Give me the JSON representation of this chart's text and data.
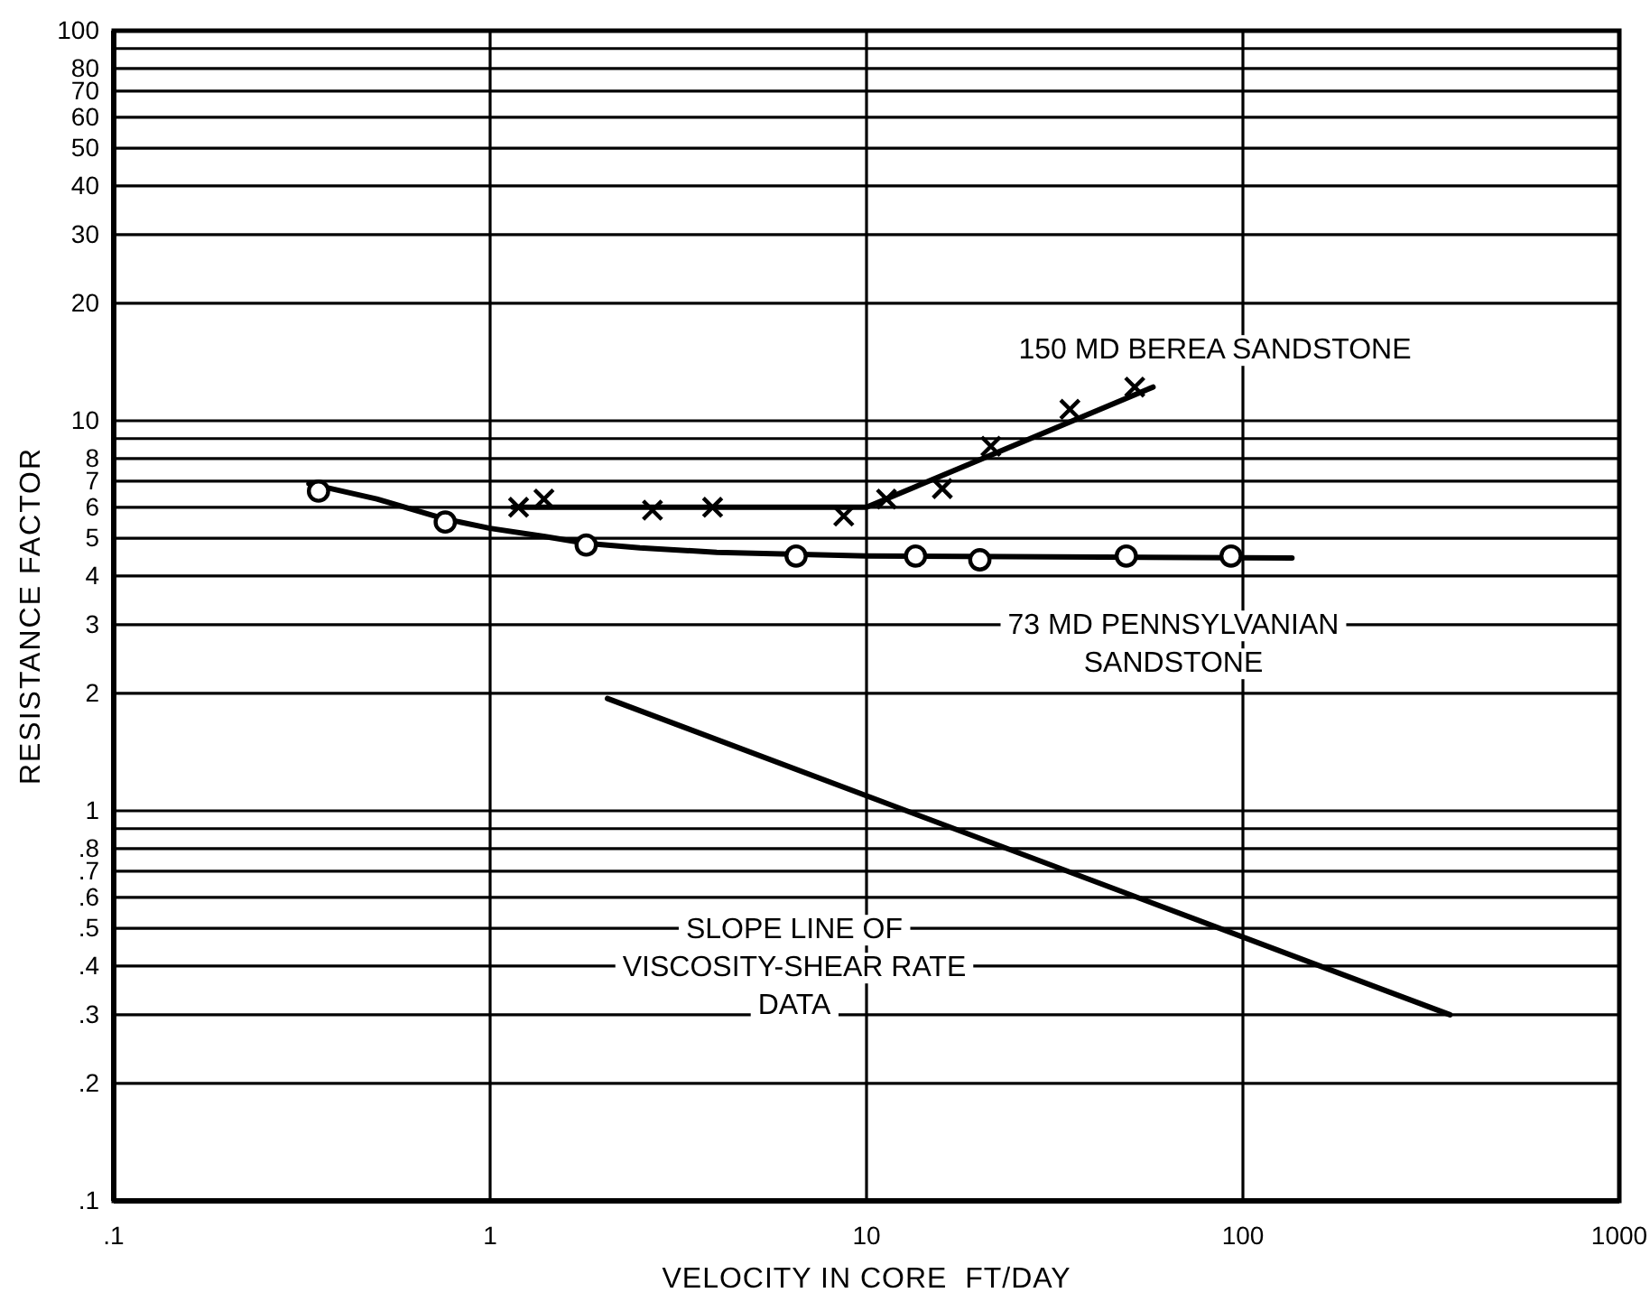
{
  "chart_data": {
    "type": "scatter",
    "xlabel": "VELOCITY IN CORE  FT/DAY",
    "ylabel": "RESISTANCE FACTOR",
    "log": "xy",
    "grid": true,
    "xlim": [
      0.1,
      1000
    ],
    "ylim": [
      0.1,
      100
    ],
    "xticks": [
      {
        "value": 0.1,
        "label": ".1"
      },
      1,
      10,
      100,
      1000
    ],
    "yticks": [
      100,
      {
        "value": 90,
        "label": null
      },
      80,
      70,
      60,
      50,
      40,
      30,
      20,
      10,
      {
        "value": 9,
        "label": null
      },
      8,
      7,
      6,
      5,
      4,
      3,
      2,
      1,
      {
        "value": 0.9,
        "label": null
      },
      {
        "value": 0.8,
        "label": ".8"
      },
      {
        "value": 0.7,
        "label": ".7"
      },
      {
        "value": 0.6,
        "label": ".6"
      },
      {
        "value": 0.5,
        "label": ".5"
      },
      {
        "value": 0.4,
        "label": ".4"
      },
      {
        "value": 0.3,
        "label": ".3"
      },
      {
        "value": 0.2,
        "label": ".2"
      },
      {
        "value": 0.1,
        "label": ".1"
      }
    ],
    "series": [
      {
        "marker": "circle",
        "color": "#000000",
        "x": [
          0.35,
          0.76,
          1.8,
          6.5,
          13.5,
          20,
          49,
          93
        ],
        "values": [
          6.6,
          5.5,
          4.8,
          4.5,
          4.5,
          4.4,
          4.5,
          4.5
        ]
      },
      {
        "type": "line",
        "color": "#000000",
        "x": [
          0.33,
          0.5,
          0.76,
          1,
          1.4,
          1.8,
          2.5,
          4,
          10,
          135
        ],
        "values": [
          6.9,
          6.3,
          5.6,
          5.3,
          5.05,
          4.85,
          4.72,
          4.6,
          4.5,
          4.45
        ]
      },
      {
        "marker": "cross",
        "color": "#000000",
        "x": [
          1.19,
          1.39,
          2.7,
          3.9,
          8.7,
          11.3,
          15.9,
          21.4,
          34.7,
          51.6
        ],
        "values": [
          6.0,
          6.3,
          5.9,
          6.0,
          5.7,
          6.3,
          6.7,
          8.6,
          10.7,
          12.2
        ]
      },
      {
        "type": "line",
        "color": "#000000",
        "x": [
          1.15,
          10,
          57.7
        ],
        "values": [
          6.0,
          6.0,
          12.2
        ]
      },
      {
        "type": "line",
        "color": "#000000",
        "x": [
          2.05,
          355
        ],
        "values": [
          1.94,
          0.3
        ]
      }
    ],
    "annotations": [
      "150 MD BEREA SANDSTONE",
      "73 MD PENNSYLVANIAN SANDSTONE",
      "SLOPE LINE OF VISCOSITY-SHEAR RATE DATA"
    ]
  }
}
